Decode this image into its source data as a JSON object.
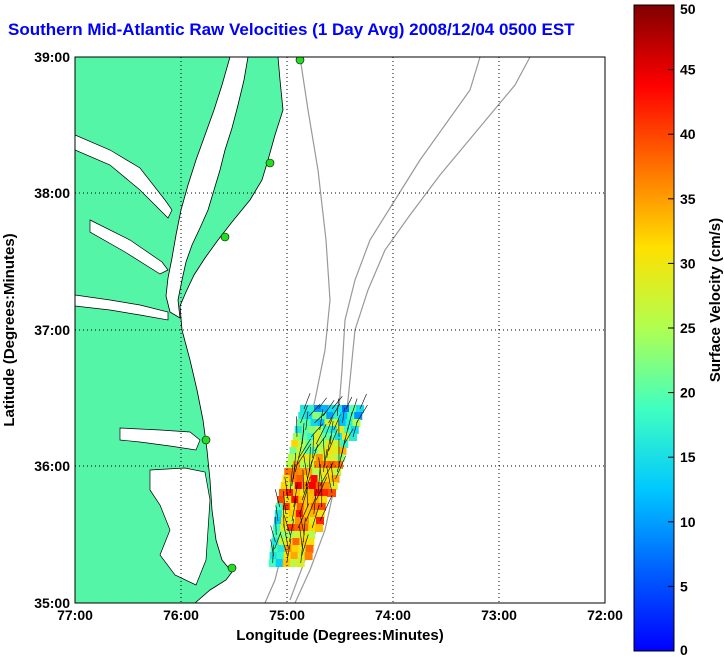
{
  "title": "Southern Mid-Atlantic Raw Velocities (1 Day Avg) 2008/12/04 0500 EST",
  "axes": {
    "xlabel": "Longitude (Degrees:Minutes)",
    "ylabel": "Latitude (Degrees:Minutes)",
    "xticks": [
      "77:00",
      "76:00",
      "75:00",
      "74:00",
      "73:00",
      "72:00"
    ],
    "yticks": [
      "39:00",
      "38:00",
      "37:00",
      "36:00",
      "35:00"
    ],
    "xlim": [
      -77,
      -72
    ],
    "ylim": [
      35,
      39
    ],
    "grid": "dotted"
  },
  "colorbar": {
    "label": "Surface Velocity (cm/s)",
    "ticks": [
      "50",
      "45",
      "40",
      "35",
      "30",
      "25",
      "20",
      "15",
      "10",
      "5",
      "0"
    ],
    "range": [
      0,
      50
    ],
    "colormap": "jet"
  },
  "colors": {
    "land": "#55f5a8",
    "coast": "#000000",
    "bathymetry": "#9a9a9a",
    "title": "#0000ff",
    "stations": "#22dd22"
  }
}
